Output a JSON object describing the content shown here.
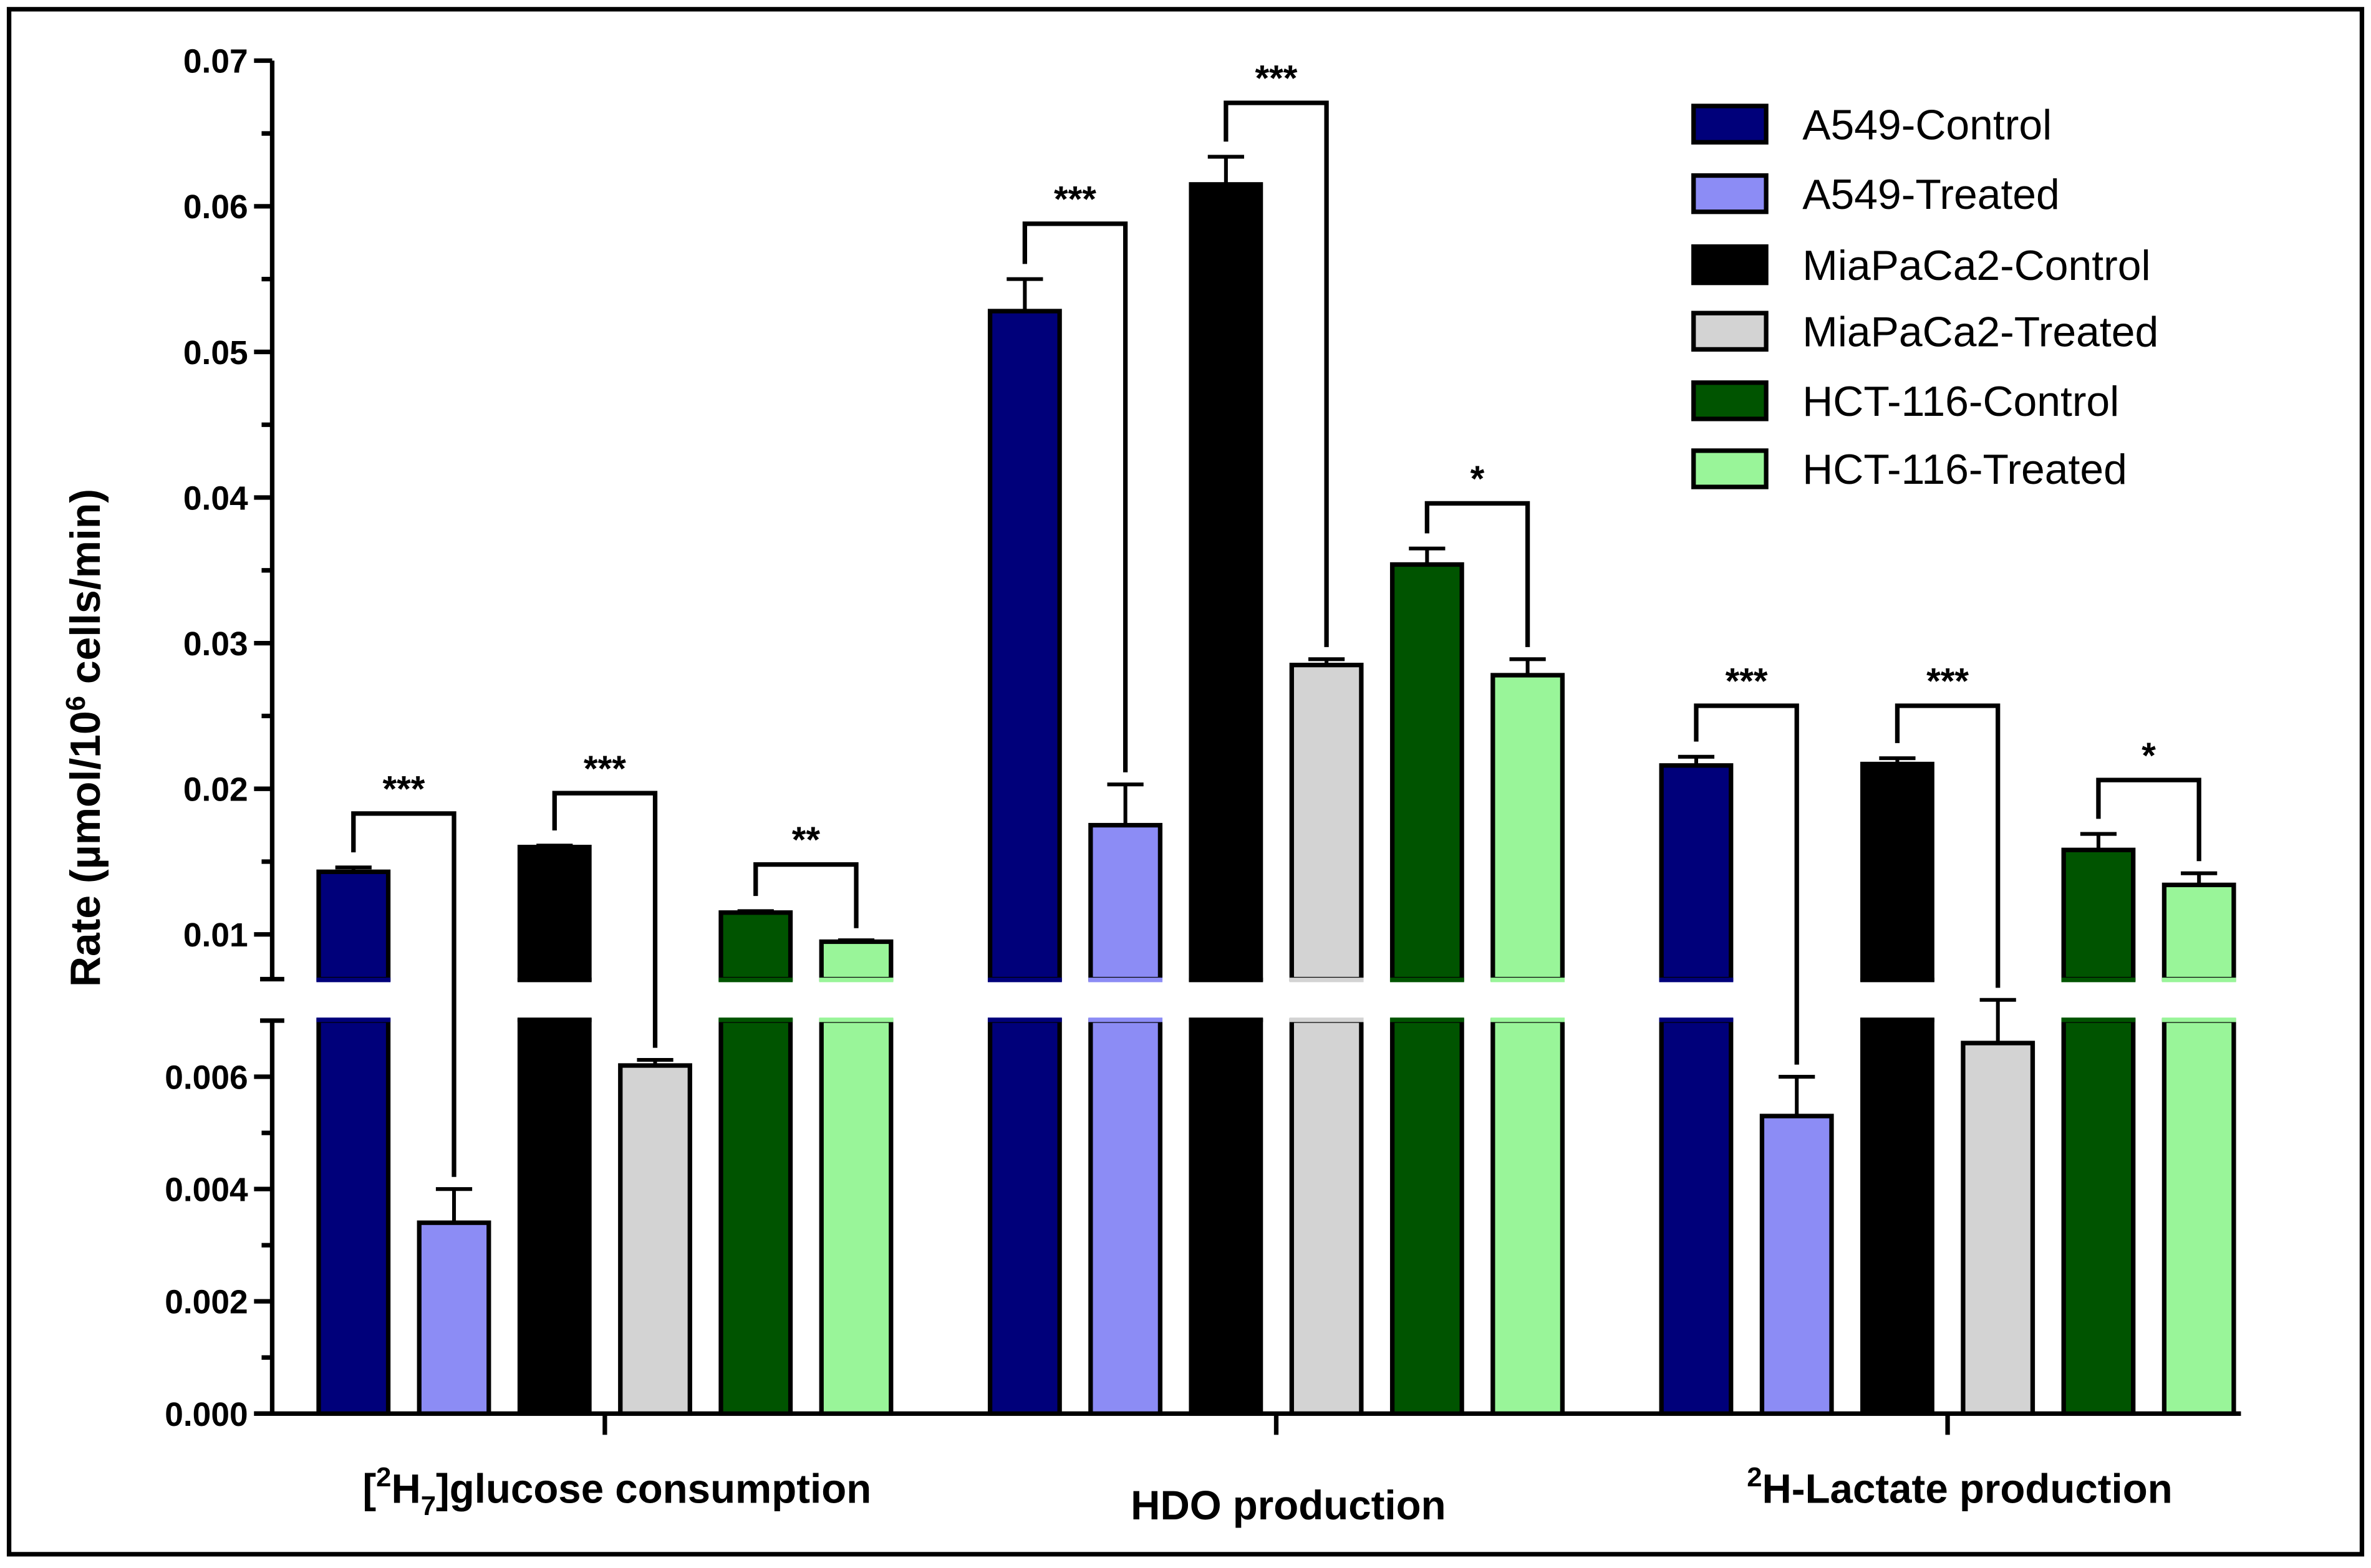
{
  "chart_data": {
    "type": "bar",
    "ylabel": "Rate (µmol/10^6 cells/min)",
    "ylabel_parts": {
      "pre": "Rate (",
      "mu": "µ",
      "mid": "mol/10",
      "sup": "6",
      "post": " cells/min)"
    },
    "y_axis_break": {
      "lower_range": [
        0,
        0.007
      ],
      "upper_range": [
        0.0088,
        0.07
      ]
    },
    "yticks_lower": [
      "0.000",
      "0.002",
      "0.004",
      "0.006"
    ],
    "yticks_upper": [
      "0.01",
      "0.02",
      "0.03",
      "0.04",
      "0.05",
      "0.06",
      "0.07"
    ],
    "categories": [
      "[2H7]glucose consumption",
      "HDO production",
      "2H-Lactate production"
    ],
    "category_labels": [
      {
        "pre": "[",
        "sup": "2",
        "mid": "H",
        "sub": "7",
        "post": "]glucose consumption"
      },
      {
        "pre": "",
        "sup": "",
        "mid": "HDO production",
        "sub": "",
        "post": ""
      },
      {
        "pre": "",
        "sup": "2",
        "mid": "H-Lactate production",
        "sub": "",
        "post": ""
      }
    ],
    "series": [
      {
        "name": "A549-Control",
        "color": "#00007a",
        "values": [
          0.0143,
          0.0528,
          0.0216
        ],
        "error": [
          0.0003,
          0.0022,
          0.0006
        ]
      },
      {
        "name": "A549-Treated",
        "color": "#8c8cf5",
        "values": [
          0.0034,
          0.0175,
          0.0053
        ],
        "error": [
          0.0006,
          0.0028,
          0.0007
        ]
      },
      {
        "name": "MiaPaCa2-Control",
        "color": "#000000",
        "values": [
          0.016,
          0.0615,
          0.0217
        ],
        "error": [
          0.0001,
          0.0019,
          0.0004
        ]
      },
      {
        "name": "MiaPaCa2-Treated",
        "color": "#d3d3d3",
        "values": [
          0.0062,
          0.0285,
          0.0066
        ],
        "error": [
          0.0001,
          0.0004,
          0.0005
        ]
      },
      {
        "name": "HCT-116-Control",
        "color": "#005400",
        "values": [
          0.0115,
          0.0354,
          0.0158
        ],
        "error": [
          0.0001,
          0.0011,
          0.0011
        ]
      },
      {
        "name": "HCT-116-Treated",
        "color": "#99f599",
        "values": [
          0.0095,
          0.0278,
          0.0134
        ],
        "error": [
          0.0001,
          0.0011,
          0.0008
        ]
      }
    ],
    "significance": [
      {
        "category": 0,
        "pair": [
          0,
          1
        ],
        "stars": "***",
        "level": 0.0183
      },
      {
        "category": 0,
        "pair": [
          2,
          3
        ],
        "stars": "***",
        "level": 0.0197
      },
      {
        "category": 0,
        "pair": [
          4,
          5
        ],
        "stars": "**",
        "level": 0.0148
      },
      {
        "category": 1,
        "pair": [
          0,
          1
        ],
        "stars": "***",
        "level": 0.0588
      },
      {
        "category": 1,
        "pair": [
          2,
          3
        ],
        "stars": "***",
        "level": 0.0671
      },
      {
        "category": 1,
        "pair": [
          4,
          5
        ],
        "stars": "*",
        "level": 0.0396
      },
      {
        "category": 2,
        "pair": [
          0,
          1
        ],
        "stars": "***",
        "level": 0.0257
      },
      {
        "category": 2,
        "pair": [
          2,
          3
        ],
        "stars": "***",
        "level": 0.0257
      },
      {
        "category": 2,
        "pair": [
          4,
          5
        ],
        "stars": "*",
        "level": 0.0206
      }
    ],
    "legend_position": "top-right"
  }
}
